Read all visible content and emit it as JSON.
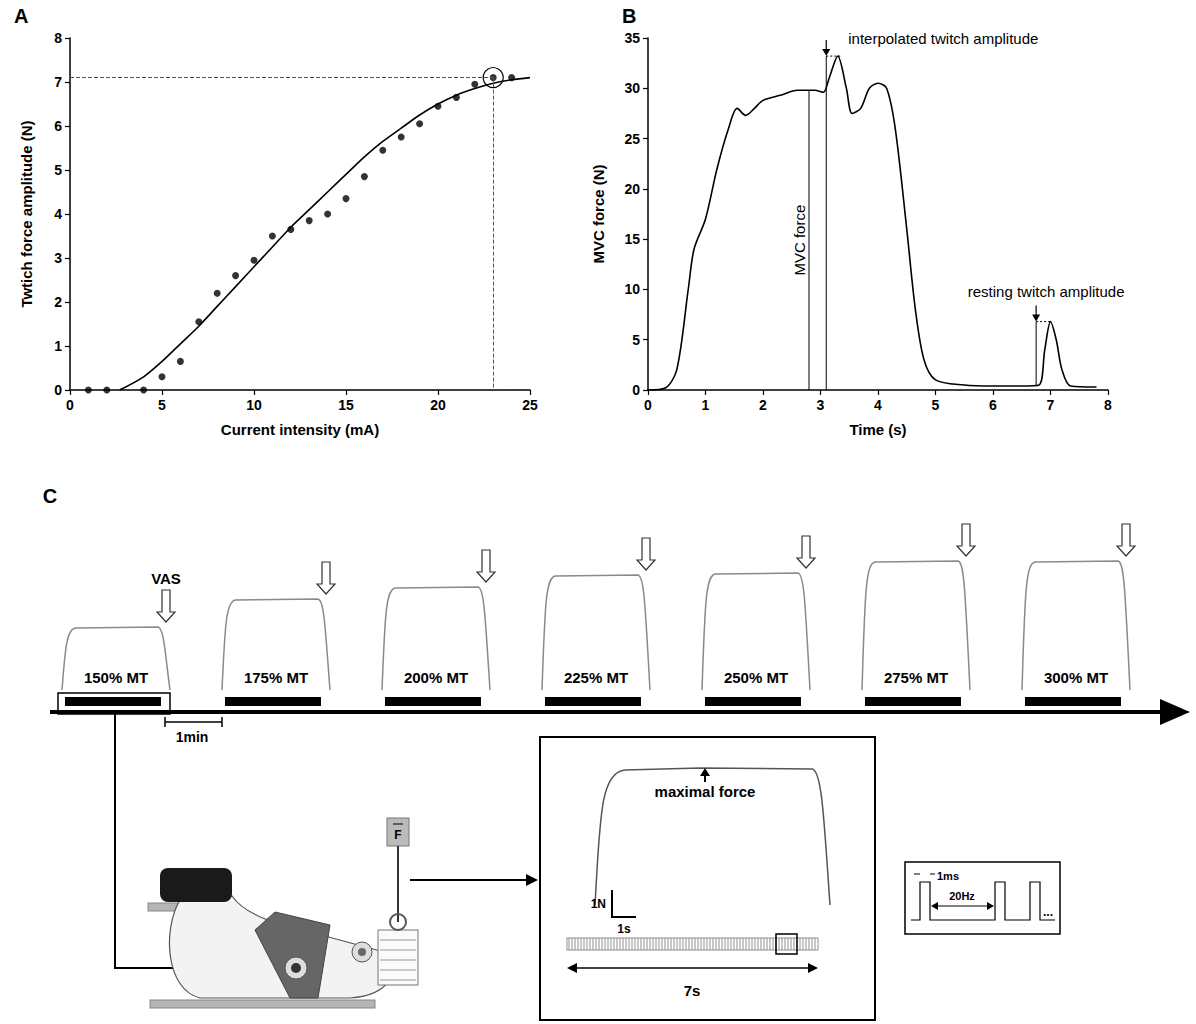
{
  "chart_data": [
    {
      "panel": "A",
      "type": "scatter",
      "x_label": "Current intensity (mA)",
      "y_label": "Twtich force amplitude (N)",
      "xlim": [
        0,
        25
      ],
      "xticks": [
        0,
        5,
        10,
        15,
        20,
        25
      ],
      "ylim": [
        0,
        8
      ],
      "yticks": [
        0,
        1,
        2,
        3,
        4,
        5,
        6,
        7,
        8
      ],
      "grid": false,
      "series": [
        {
          "type": "scatter",
          "marker": "circle",
          "color": "#000000",
          "x": [
            1,
            2,
            4,
            5,
            6,
            7,
            8,
            9,
            10,
            11,
            12,
            13,
            14,
            15,
            16,
            17,
            18,
            19,
            20,
            21,
            22,
            23,
            24
          ],
          "values": [
            0,
            0,
            0,
            0.3,
            0.65,
            1.55,
            2.2,
            2.6,
            2.95,
            3.5,
            3.65,
            3.85,
            4.0,
            4.35,
            4.85,
            5.45,
            5.75,
            6.05,
            6.45,
            6.65,
            6.95,
            7.1,
            7.1
          ]
        },
        {
          "type": "line",
          "line_style": "solid",
          "color": "#000000",
          "x": [
            2.7,
            4,
            5,
            6,
            7,
            8,
            9,
            10,
            11,
            12,
            13,
            14,
            15,
            16,
            17,
            18,
            19,
            20,
            21,
            22,
            23,
            24,
            25
          ],
          "values": [
            0,
            0.3,
            0.65,
            1.05,
            1.45,
            1.9,
            2.35,
            2.8,
            3.25,
            3.7,
            4.1,
            4.5,
            4.9,
            5.3,
            5.65,
            5.95,
            6.25,
            6.5,
            6.7,
            6.85,
            6.97,
            7.05,
            7.1
          ]
        }
      ],
      "selected_point": {
        "x": 23,
        "y": 7.1
      }
    },
    {
      "panel": "B",
      "type": "line",
      "x_label": "Time (s)",
      "y_label": "MVC force (N)",
      "xlim": [
        0,
        8
      ],
      "xticks": [
        0,
        1,
        2,
        3,
        4,
        5,
        6,
        7,
        8
      ],
      "ylim": [
        0,
        35
      ],
      "yticks": [
        0,
        5,
        10,
        15,
        20,
        25,
        30,
        35
      ],
      "grid": false,
      "series": [
        {
          "type": "line",
          "line_style": "solid",
          "color": "#000000",
          "x": [
            0,
            0.3,
            0.5,
            0.7,
            0.8,
            1.0,
            1.2,
            1.4,
            1.55,
            1.7,
            1.85,
            2.0,
            2.3,
            2.6,
            2.9,
            3.05,
            3.15,
            3.3,
            3.45,
            3.55,
            3.7,
            3.85,
            4.0,
            4.15,
            4.3,
            4.5,
            4.65,
            4.8,
            5.0,
            5.5,
            6.0,
            6.5,
            6.8,
            6.9,
            7.0,
            7.1,
            7.2,
            7.35,
            7.8
          ],
          "values": [
            0,
            0.2,
            2,
            10,
            14,
            17,
            22,
            26,
            28,
            27.3,
            28,
            28.8,
            29.3,
            29.8,
            29.8,
            29.6,
            31,
            33.2,
            30,
            27.5,
            28,
            30,
            30.5,
            30,
            26,
            16,
            8,
            3,
            1,
            0.5,
            0.4,
            0.4,
            0.5,
            4,
            6.8,
            5,
            2,
            0.4,
            0.3
          ]
        }
      ],
      "annotations": [
        {
          "text": "MVC force",
          "x": 2.8,
          "y0": 0,
          "y": 29.8
        },
        {
          "text": "interpolated twitch amplitude",
          "x": 3.1,
          "y0": 0,
          "y": 33.2
        },
        {
          "text": "resting twitch amplitude",
          "x": 6.75,
          "y0": 0.5,
          "y": 6.8
        }
      ]
    }
  ],
  "panel_c": {
    "panel": "C",
    "conditions": [
      "150% MT",
      "175% MT",
      "200% MT",
      "225% MT",
      "250% MT",
      "275% MT",
      "300% MT"
    ],
    "vas_label": "VAS",
    "interval_label": "1min",
    "sensor_label": "F",
    "inset": {
      "annotation": "maximal force",
      "scale_force": "1N",
      "scale_time": "1s",
      "duration": "7s"
    },
    "pulse": {
      "width": "1ms",
      "frequency": "20Hz",
      "continuation": "..."
    }
  }
}
